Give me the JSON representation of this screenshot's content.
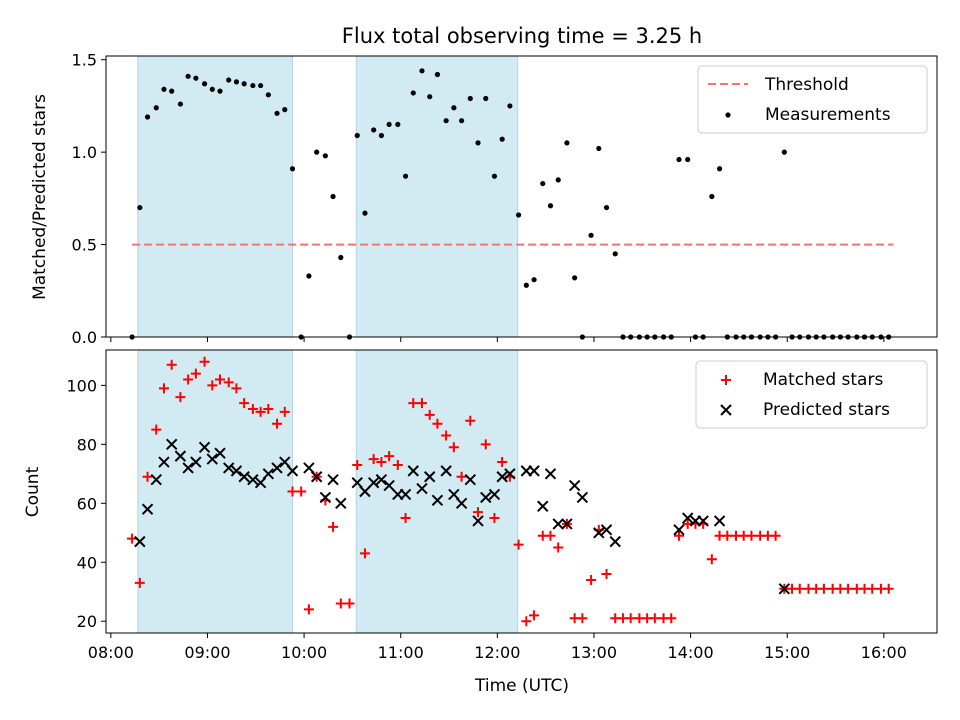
{
  "chart_data": [
    {
      "type": "scatter",
      "panel": "top",
      "title": "Flux total observing time = 3.25 h",
      "xlabel": "",
      "ylabel": "Matched/Predicted stars",
      "xlim": [
        7.95,
        16.55
      ],
      "ylim": [
        0,
        1.52
      ],
      "yticks": [
        0,
        0.5,
        1.0,
        1.5
      ],
      "ytick_labels": [
        "0.0",
        "0.5",
        "1.0",
        "1.5"
      ],
      "shaded_spans": [
        [
          8.28,
          9.88
        ],
        [
          10.54,
          12.21
        ]
      ],
      "shade_color": "#add8e6",
      "legend_position": "upper right",
      "series": [
        {
          "name": "Threshold",
          "kind": "dashed-line",
          "color": "#ff6f6f",
          "x": [
            8.22,
            16.1
          ],
          "y": [
            0.5,
            0.5
          ]
        },
        {
          "name": "Measurements",
          "kind": "dot",
          "color": "#000000",
          "x": [
            8.22,
            8.3,
            8.38,
            8.47,
            8.55,
            8.63,
            8.72,
            8.8,
            8.88,
            8.97,
            9.05,
            9.13,
            9.22,
            9.3,
            9.38,
            9.47,
            9.55,
            9.63,
            9.72,
            9.8,
            9.88,
            9.97,
            10.05,
            10.13,
            10.22,
            10.3,
            10.38,
            10.47,
            10.55,
            10.63,
            10.72,
            10.8,
            10.88,
            10.97,
            11.05,
            11.13,
            11.22,
            11.3,
            11.38,
            11.47,
            11.55,
            11.63,
            11.72,
            11.8,
            11.88,
            11.97,
            12.05,
            12.13,
            12.22,
            12.3,
            12.38,
            12.47,
            12.55,
            12.63,
            12.72,
            12.8,
            12.88,
            12.97,
            13.05,
            13.13,
            13.22,
            13.3,
            13.38,
            13.47,
            13.55,
            13.63,
            13.72,
            13.8,
            13.88,
            13.97,
            14.05,
            14.13,
            14.22,
            14.3,
            14.38,
            14.47,
            14.55,
            14.63,
            14.72,
            14.8,
            14.88,
            14.97,
            15.05,
            15.13,
            15.22,
            15.3,
            15.38,
            15.47,
            15.55,
            15.63,
            15.72,
            15.8,
            15.88,
            15.97,
            16.05
          ],
          "y": [
            0.0,
            0.7,
            1.19,
            1.24,
            1.34,
            1.33,
            1.26,
            1.41,
            1.4,
            1.37,
            1.34,
            1.33,
            1.39,
            1.38,
            1.37,
            1.36,
            1.36,
            1.31,
            1.21,
            1.23,
            0.91,
            0.0,
            0.33,
            1.0,
            0.98,
            0.76,
            0.43,
            0.0,
            1.09,
            0.67,
            1.12,
            1.09,
            1.15,
            1.15,
            0.87,
            1.32,
            1.44,
            1.3,
            1.42,
            1.17,
            1.24,
            1.17,
            1.29,
            1.05,
            1.29,
            0.87,
            1.07,
            1.25,
            0.66,
            0.28,
            0.31,
            0.83,
            0.71,
            0.85,
            1.05,
            0.32,
            0.0,
            0.55,
            1.02,
            0.7,
            0.45,
            0.0,
            0.0,
            0.0,
            0.0,
            0.0,
            0.0,
            0.0,
            0.96,
            0.96,
            0.0,
            0.0,
            0.76,
            0.91,
            0.0,
            0.0,
            0.0,
            0.0,
            0.0,
            0.0,
            0.0,
            1.0,
            0.0,
            0.0,
            0.0,
            0.0,
            0.0,
            0.0,
            0.0,
            0.0,
            0.0,
            0.0,
            0.0,
            0.0,
            0.0
          ]
        }
      ]
    },
    {
      "type": "scatter",
      "panel": "bottom",
      "xlabel": "Time (UTC)",
      "ylabel": "Count",
      "xlim": [
        7.95,
        16.55
      ],
      "ylim": [
        16,
        112
      ],
      "xticks": [
        8,
        9,
        10,
        11,
        12,
        13,
        14,
        15,
        16
      ],
      "xtick_labels": [
        "08:00",
        "09:00",
        "10:00",
        "11:00",
        "12:00",
        "13:00",
        "14:00",
        "15:00",
        "16:00"
      ],
      "yticks": [
        20,
        40,
        60,
        80,
        100
      ],
      "ytick_labels": [
        "20",
        "40",
        "60",
        "80",
        "100"
      ],
      "shaded_spans": [
        [
          8.28,
          9.88
        ],
        [
          10.54,
          12.21
        ]
      ],
      "legend_position": "upper right",
      "series": [
        {
          "name": "Matched stars",
          "marker": "+",
          "color": "#ff0000",
          "x": [
            8.22,
            8.3,
            8.38,
            8.47,
            8.55,
            8.63,
            8.72,
            8.8,
            8.88,
            8.97,
            9.05,
            9.13,
            9.22,
            9.3,
            9.38,
            9.47,
            9.55,
            9.63,
            9.72,
            9.8,
            9.88,
            9.97,
            10.05,
            10.13,
            10.22,
            10.3,
            10.38,
            10.47,
            10.55,
            10.63,
            10.72,
            10.8,
            10.88,
            10.97,
            11.05,
            11.13,
            11.22,
            11.3,
            11.38,
            11.47,
            11.55,
            11.63,
            11.72,
            11.8,
            11.88,
            11.97,
            12.05,
            12.13,
            12.22,
            12.3,
            12.38,
            12.47,
            12.55,
            12.63,
            12.72,
            12.8,
            12.88,
            12.97,
            13.05,
            13.13,
            13.22,
            13.3,
            13.38,
            13.47,
            13.55,
            13.63,
            13.72,
            13.8,
            13.88,
            13.97,
            14.05,
            14.13,
            14.22,
            14.3,
            14.38,
            14.47,
            14.55,
            14.63,
            14.72,
            14.8,
            14.88,
            14.97,
            15.05,
            15.13,
            15.22,
            15.3,
            15.38,
            15.47,
            15.55,
            15.63,
            15.72,
            15.8,
            15.88,
            15.97,
            16.05
          ],
          "y": [
            48,
            33,
            69,
            85,
            99,
            107,
            96,
            102,
            104,
            108,
            100,
            102,
            101,
            99,
            94,
            92,
            91,
            92,
            87,
            91,
            64,
            64,
            24,
            69,
            61,
            52,
            26,
            26,
            73,
            43,
            75,
            74,
            76,
            73,
            55,
            94,
            94,
            90,
            87,
            83,
            79,
            69,
            88,
            57,
            80,
            55,
            74,
            69,
            46,
            20,
            22,
            49,
            49,
            45,
            53,
            21,
            21,
            34,
            51,
            36,
            21,
            21,
            21,
            21,
            21,
            21,
            21,
            21,
            49,
            53,
            53,
            53,
            41,
            49,
            49,
            49,
            49,
            49,
            49,
            49,
            49,
            31,
            31,
            31,
            31,
            31,
            31,
            31,
            31,
            31,
            31,
            31,
            31,
            31,
            31
          ]
        },
        {
          "name": "Predicted stars",
          "marker": "x",
          "color": "#000000",
          "x": [
            8.3,
            8.38,
            8.47,
            8.55,
            8.63,
            8.72,
            8.8,
            8.88,
            8.97,
            9.05,
            9.13,
            9.22,
            9.3,
            9.38,
            9.47,
            9.55,
            9.63,
            9.72,
            9.8,
            9.88,
            10.05,
            10.13,
            10.22,
            10.3,
            10.38,
            10.55,
            10.63,
            10.72,
            10.8,
            10.88,
            10.97,
            11.05,
            11.13,
            11.22,
            11.3,
            11.38,
            11.47,
            11.55,
            11.63,
            11.72,
            11.8,
            11.88,
            11.97,
            12.05,
            12.13,
            12.3,
            12.38,
            12.47,
            12.55,
            12.63,
            12.72,
            12.8,
            12.88,
            13.05,
            13.13,
            13.22,
            13.88,
            13.97,
            14.05,
            14.13,
            14.3,
            14.97
          ],
          "y": [
            47,
            58,
            68,
            74,
            80,
            76,
            72,
            74,
            79,
            75,
            77,
            72,
            71,
            69,
            68,
            67,
            70,
            72,
            74,
            71,
            72,
            69,
            62,
            68,
            60,
            67,
            64,
            67,
            68,
            66,
            63,
            63,
            71,
            65,
            69,
            61,
            71,
            63,
            60,
            68,
            54,
            62,
            63,
            69,
            70,
            71,
            71,
            59,
            70,
            53,
            53,
            66,
            62,
            50,
            51,
            47,
            51,
            55,
            54,
            54,
            54,
            31
          ]
        }
      ]
    }
  ]
}
